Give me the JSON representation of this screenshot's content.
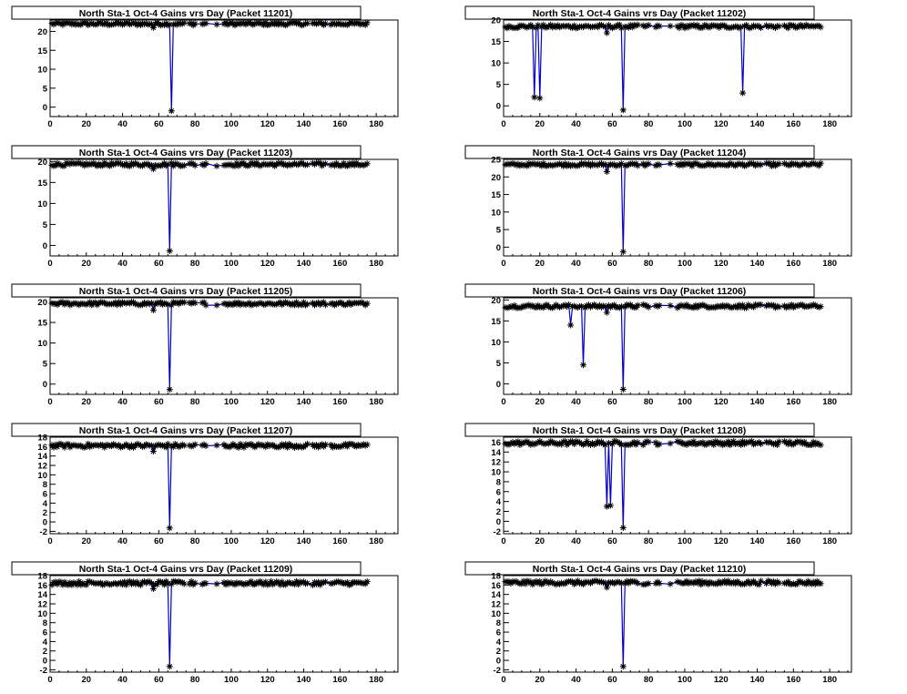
{
  "colors": {
    "background": "#ffffff",
    "frame": "#000000",
    "line": "#0000cc",
    "marker": "#000000"
  },
  "chart_data": [
    {
      "type": "line",
      "title": "North Sta-1 Oct-4 Gains vrs Day (Packet 11201)",
      "xlim": [
        0,
        192
      ],
      "ylim": [
        -2.5,
        23
      ],
      "xticks": [
        0,
        20,
        40,
        60,
        80,
        100,
        120,
        140,
        160,
        180
      ],
      "yticks": [
        0,
        5,
        10,
        15,
        20
      ],
      "baseline": 22,
      "dips": [
        [
          57,
          21
        ],
        [
          67,
          -1
        ]
      ]
    },
    {
      "type": "line",
      "title": "North Sta-1 Oct-4 Gains vrs Day (Packet 11202)",
      "xlim": [
        0,
        192
      ],
      "ylim": [
        -2.5,
        20
      ],
      "xticks": [
        0,
        20,
        40,
        60,
        80,
        100,
        120,
        140,
        160,
        180
      ],
      "yticks": [
        0,
        5,
        10,
        15,
        20
      ],
      "baseline": 18.5,
      "dips": [
        [
          17,
          2
        ],
        [
          20,
          1.8
        ],
        [
          57,
          17
        ],
        [
          66,
          -1
        ],
        [
          132,
          3
        ]
      ]
    },
    {
      "type": "line",
      "title": "North Sta-1 Oct-4 Gains vrs Day (Packet 11203)",
      "xlim": [
        0,
        192
      ],
      "ylim": [
        -2.5,
        20.5
      ],
      "xticks": [
        0,
        20,
        40,
        60,
        80,
        100,
        120,
        140,
        160,
        180
      ],
      "yticks": [
        0,
        5,
        10,
        15,
        20
      ],
      "baseline": 19.3,
      "dips": [
        [
          57,
          18.2
        ],
        [
          66,
          -1.3
        ]
      ]
    },
    {
      "type": "line",
      "title": "North Sta-1 Oct-4 Gains vrs Day (Packet 11204)",
      "xlim": [
        0,
        192
      ],
      "ylim": [
        -2.5,
        25
      ],
      "xticks": [
        0,
        20,
        40,
        60,
        80,
        100,
        120,
        140,
        160,
        180
      ],
      "yticks": [
        0,
        5,
        10,
        15,
        20,
        25
      ],
      "baseline": 23.5,
      "dips": [
        [
          57,
          21.5
        ],
        [
          66,
          -1.3
        ]
      ]
    },
    {
      "type": "line",
      "title": "North Sta-1 Oct-4 Gains vrs Day (Packet 11205)",
      "xlim": [
        0,
        192
      ],
      "ylim": [
        -2.5,
        21
      ],
      "xticks": [
        0,
        20,
        40,
        60,
        80,
        100,
        120,
        140,
        160,
        180
      ],
      "yticks": [
        0,
        5,
        10,
        15,
        20
      ],
      "baseline": 19.6,
      "dips": [
        [
          57,
          18
        ],
        [
          66,
          -1.3
        ]
      ]
    },
    {
      "type": "line",
      "title": "North Sta-1 Oct-4 Gains vrs Day (Packet 11206)",
      "xlim": [
        0,
        192
      ],
      "ylim": [
        -2.5,
        20.5
      ],
      "xticks": [
        0,
        20,
        40,
        60,
        80,
        100,
        120,
        140,
        160,
        180
      ],
      "yticks": [
        0,
        5,
        10,
        15,
        20
      ],
      "baseline": 18.5,
      "dips": [
        [
          37,
          14
        ],
        [
          44,
          4.5
        ],
        [
          57,
          17
        ],
        [
          66,
          -1.3
        ]
      ]
    },
    {
      "type": "line",
      "title": "North Sta-1 Oct-4 Gains vrs Day (Packet 11207)",
      "xlim": [
        0,
        192
      ],
      "ylim": [
        -2.5,
        18
      ],
      "xticks": [
        0,
        20,
        40,
        60,
        80,
        100,
        120,
        140,
        160,
        180
      ],
      "yticks": [
        -2,
        0,
        2,
        4,
        6,
        8,
        10,
        12,
        14,
        16,
        18
      ],
      "baseline": 16.2,
      "dips": [
        [
          57,
          15
        ],
        [
          66,
          -1.3
        ]
      ]
    },
    {
      "type": "line",
      "title": "North Sta-1 Oct-4 Gains vrs Day (Packet 11208)",
      "xlim": [
        0,
        192
      ],
      "ylim": [
        -2.5,
        17
      ],
      "xticks": [
        0,
        20,
        40,
        60,
        80,
        100,
        120,
        140,
        160,
        180
      ],
      "yticks": [
        -2,
        0,
        2,
        4,
        6,
        8,
        10,
        12,
        14,
        16
      ],
      "baseline": 15.8,
      "dips": [
        [
          57,
          3
        ],
        [
          59,
          3.2
        ],
        [
          66,
          -1.3
        ]
      ]
    },
    {
      "type": "line",
      "title": "North Sta-1 Oct-4 Gains vrs Day (Packet 11209)",
      "xlim": [
        0,
        192
      ],
      "ylim": [
        -2.5,
        18
      ],
      "xticks": [
        0,
        20,
        40,
        60,
        80,
        100,
        120,
        140,
        160,
        180
      ],
      "yticks": [
        -2,
        0,
        2,
        4,
        6,
        8,
        10,
        12,
        14,
        16,
        18
      ],
      "baseline": 16.4,
      "dips": [
        [
          57,
          15.2
        ],
        [
          66,
          -1.3
        ]
      ]
    },
    {
      "type": "line",
      "title": "North Sta-1 Oct-4 Gains vrs Day (Packet 11210)",
      "xlim": [
        0,
        192
      ],
      "ylim": [
        -2.5,
        18
      ],
      "xticks": [
        0,
        20,
        40,
        60,
        80,
        100,
        120,
        140,
        160,
        180
      ],
      "yticks": [
        -2,
        0,
        2,
        4,
        6,
        8,
        10,
        12,
        14,
        16,
        18
      ],
      "baseline": 16.5,
      "dips": [
        [
          57,
          15.5
        ],
        [
          66,
          -1.3
        ]
      ]
    }
  ]
}
